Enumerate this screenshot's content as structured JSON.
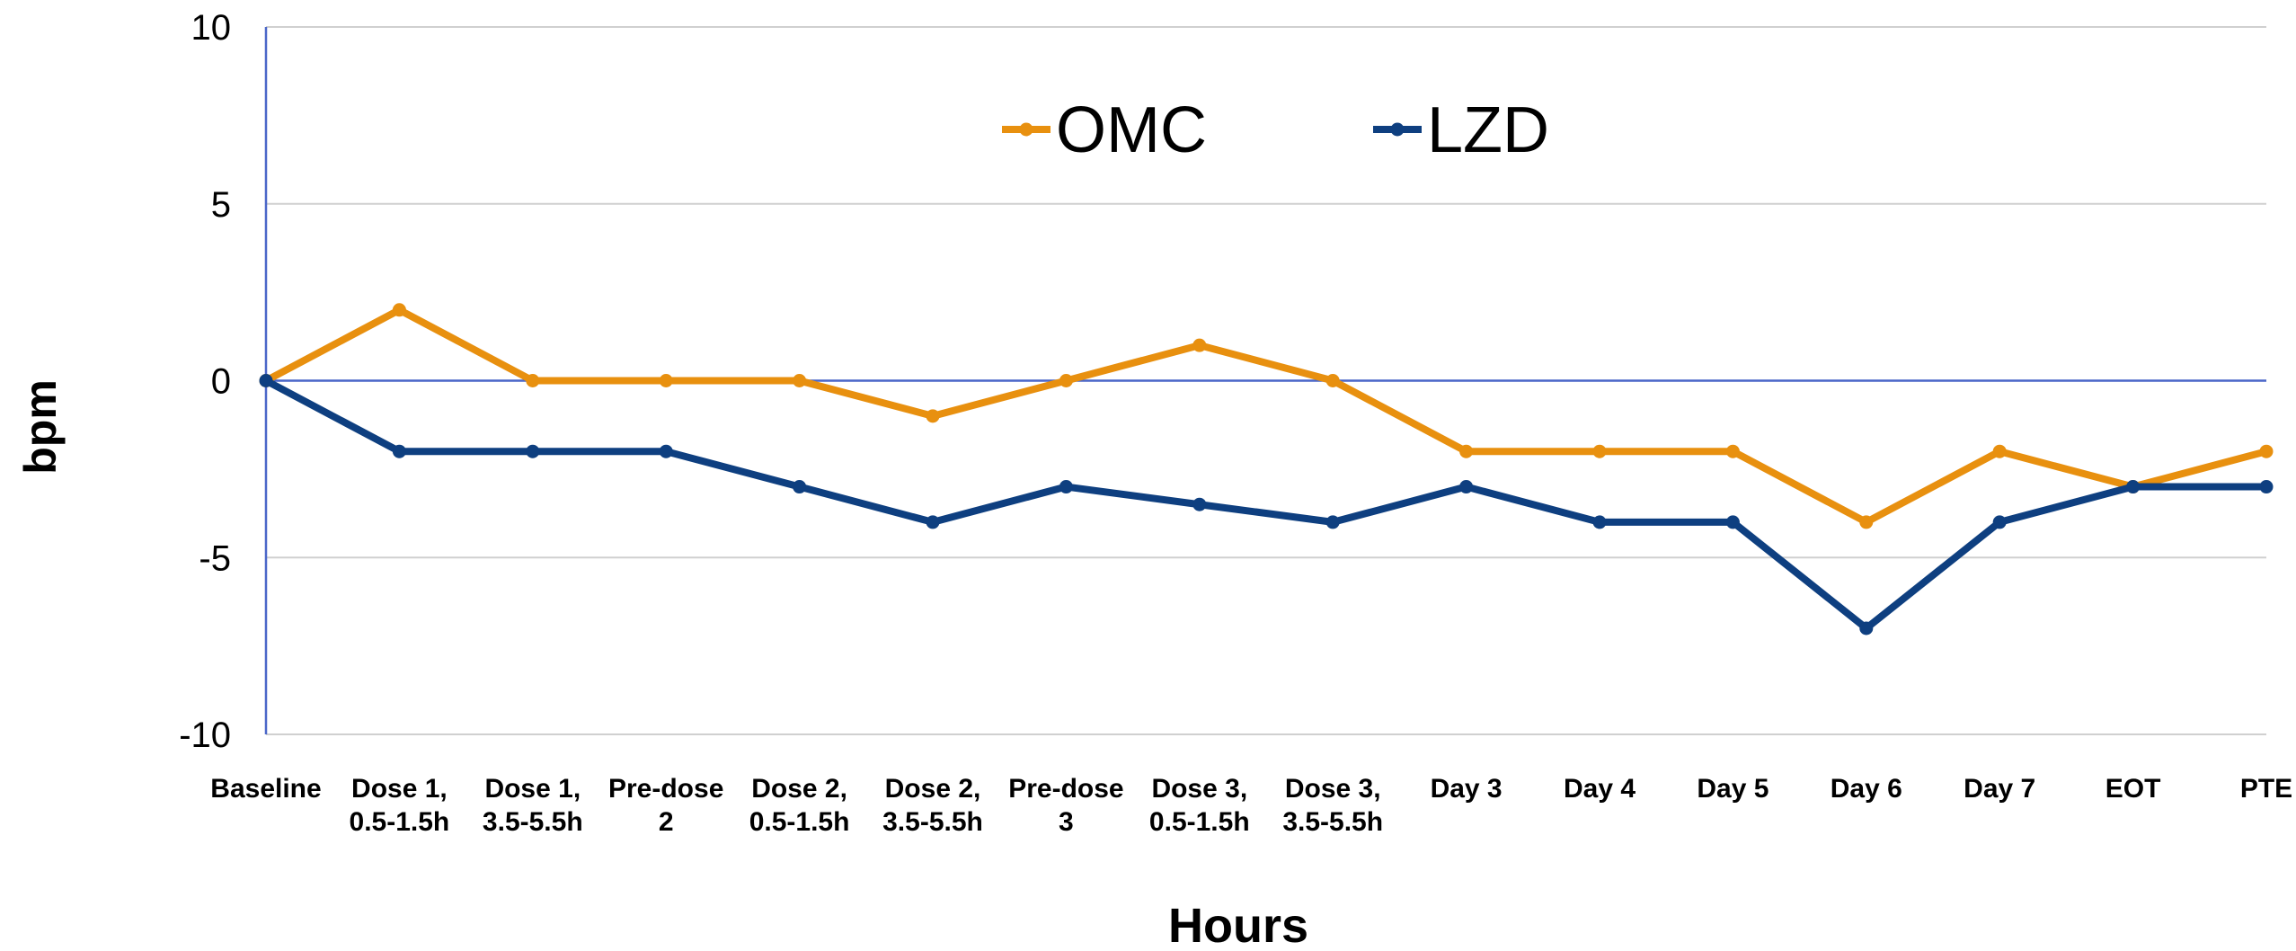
{
  "chart_data": {
    "type": "line",
    "x_label": "Hours",
    "y_label": "bpm",
    "categories": [
      "Baseline",
      "Dose 1,\n0.5-1.5h",
      "Dose 1,\n3.5-5.5h",
      "Pre-dose\n2",
      "Dose 2,\n0.5-1.5h",
      "Dose 2,\n3.5-5.5h",
      "Pre-dose\n3",
      "Dose 3,\n0.5-1.5h",
      "Dose 3,\n3.5-5.5h",
      "Day 3",
      "Day 4",
      "Day 5",
      "Day 6",
      "Day 7",
      "EOT",
      "PTE"
    ],
    "series": [
      {
        "name": "OMC",
        "color": "#e8900f",
        "values": [
          0,
          2,
          0,
          0,
          0,
          -1,
          0,
          1,
          0,
          -2,
          -2,
          -2,
          -4,
          -2,
          -3,
          -2
        ]
      },
      {
        "name": "LZD",
        "color": "#0e3f80",
        "values": [
          0,
          -2,
          -2,
          -2,
          -3,
          -4,
          -3,
          -3.5,
          -4,
          -3,
          -4,
          -4,
          -7,
          -4,
          -3,
          -3
        ]
      }
    ],
    "ylim": [
      -10,
      10
    ],
    "yticks": [
      -10,
      -5,
      0,
      5,
      10
    ],
    "grid": true,
    "legend": "top"
  }
}
